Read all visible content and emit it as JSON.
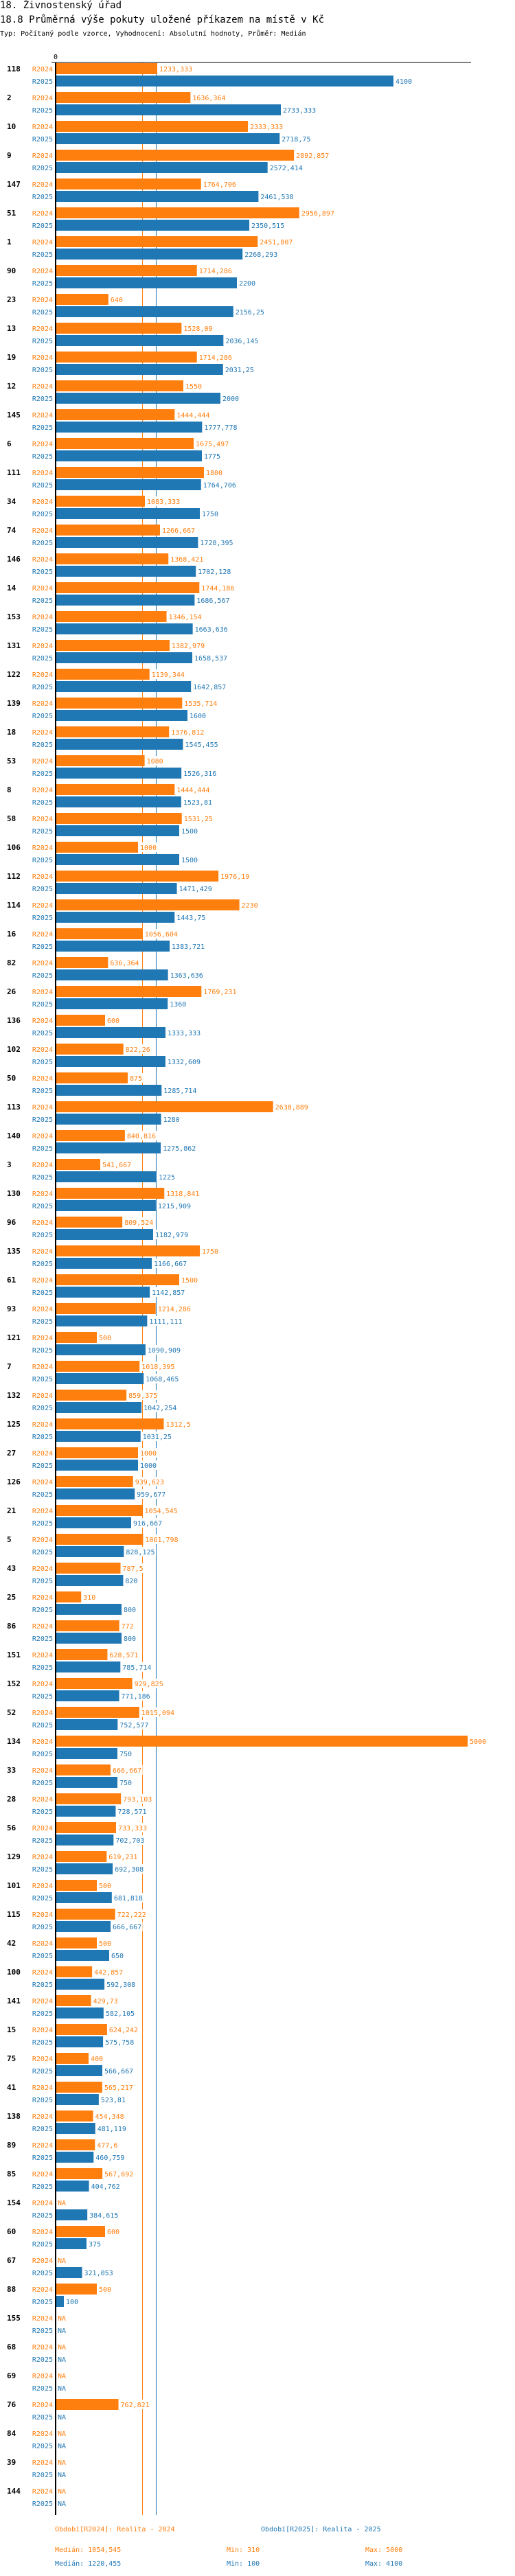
{
  "header": {
    "section": "18. Živnostenský úřad",
    "title": "18.8 Průměrná výše pokuty uložené příkazem na místě v Kč",
    "subtitle": "Typ: Počítaný podle vzorce, Vyhodnocení: Absolutní hodnoty, Průměr: Medián"
  },
  "colors": {
    "r2024": "#ff7f0e",
    "r2025": "#1f77b4",
    "axis": "#000000"
  },
  "chart_data": {
    "type": "bar",
    "orientation": "horizontal",
    "title": "18.8 Průměrná výše pokuty uložené příkazem na místě v Kč",
    "xlabel": "",
    "ylabel": "",
    "x_tick_labels": [
      "0"
    ],
    "xlim": [
      0,
      5000
    ],
    "grid": false,
    "legend_position": "bottom",
    "series_labels": [
      "R2024",
      "R2025"
    ],
    "categories": [
      "118",
      "2",
      "10",
      "9",
      "147",
      "51",
      "1",
      "90",
      "23",
      "13",
      "19",
      "12",
      "145",
      "6",
      "111",
      "34",
      "74",
      "146",
      "14",
      "153",
      "131",
      "122",
      "139",
      "18",
      "53",
      "8",
      "58",
      "106",
      "112",
      "114",
      "16",
      "82",
      "26",
      "136",
      "102",
      "50",
      "113",
      "140",
      "3",
      "130",
      "96",
      "135",
      "61",
      "93",
      "121",
      "7",
      "132",
      "125",
      "27",
      "126",
      "21",
      "5",
      "43",
      "25",
      "86",
      "151",
      "152",
      "52",
      "134",
      "33",
      "28",
      "56",
      "129",
      "101",
      "115",
      "42",
      "100",
      "141",
      "15",
      "75",
      "41",
      "138",
      "89",
      "85",
      "154",
      "60",
      "67",
      "88",
      "155",
      "68",
      "69",
      "76",
      "84",
      "39",
      "144"
    ],
    "series": [
      {
        "name": "R2024",
        "legend": "Období[R2024]: Realita - 2024",
        "values": [
          1233.333,
          1636.364,
          2333.333,
          2892.857,
          1764.706,
          2956.897,
          2451.807,
          1714.286,
          640,
          1528.09,
          1714.286,
          1550,
          1444.444,
          1675.497,
          1800,
          1083.333,
          1266.667,
          1368.421,
          1744.186,
          1346.154,
          1382.979,
          1139.344,
          1535.714,
          1376.812,
          1080,
          1444.444,
          1531.25,
          1000,
          1976.19,
          2230,
          1056.604,
          636.364,
          1769.231,
          600,
          822.26,
          875,
          2638.889,
          840.816,
          541.667,
          1318.841,
          809.524,
          1750,
          1500,
          1214.286,
          500,
          1018.395,
          859.375,
          1312.5,
          1000,
          939.623,
          1054.545,
          1061.798,
          787.5,
          310,
          772,
          628.571,
          929.825,
          1015.094,
          5000,
          666.667,
          793.103,
          733.333,
          619.231,
          500,
          722.222,
          500,
          442.857,
          429.73,
          624.242,
          400,
          565.217,
          454.348,
          477.6,
          567.692,
          null,
          600,
          null,
          500,
          null,
          null,
          null,
          762.821,
          null,
          null,
          null
        ],
        "labels": [
          "1233,333",
          "1636,364",
          "2333,333",
          "2892,857",
          "1764,706",
          "2956,897",
          "2451,807",
          "1714,286",
          "640",
          "1528,09",
          "1714,286",
          "1550",
          "1444,444",
          "1675,497",
          "1800",
          "1083,333",
          "1266,667",
          "1368,421",
          "1744,186",
          "1346,154",
          "1382,979",
          "1139,344",
          "1535,714",
          "1376,812",
          "1080",
          "1444,444",
          "1531,25",
          "1000",
          "1976,19",
          "2230",
          "1056,604",
          "636,364",
          "1769,231",
          "600",
          "822,26",
          "875",
          "2638,889",
          "840,816",
          "541,667",
          "1318,841",
          "809,524",
          "1750",
          "1500",
          "1214,286",
          "500",
          "1018,395",
          "859,375",
          "1312,5",
          "1000",
          "939,623",
          "1054,545",
          "1061,798",
          "787,5",
          "310",
          "772",
          "628,571",
          "929,825",
          "1015,094",
          "5000",
          "666,667",
          "793,103",
          "733,333",
          "619,231",
          "500",
          "722,222",
          "500",
          "442,857",
          "429,73",
          "624,242",
          "400",
          "565,217",
          "454,348",
          "477,6",
          "567,692",
          "NA",
          "600",
          "NA",
          "500",
          "NA",
          "NA",
          "NA",
          "762,821",
          "NA",
          "NA",
          "NA"
        ],
        "median": 1054.545,
        "median_label": "Medián: 1054,545",
        "min_label": "Min: 310",
        "max_label": "Max: 5000"
      },
      {
        "name": "R2025",
        "legend": "Období[R2025]: Realita - 2025",
        "values": [
          4100,
          2733.333,
          2718.75,
          2572.414,
          2461.538,
          2350.515,
          2268.293,
          2200,
          2156.25,
          2036.145,
          2031.25,
          2000,
          1777.778,
          1775,
          1764.706,
          1750,
          1728.395,
          1702.128,
          1686.567,
          1663.636,
          1658.537,
          1642.857,
          1600,
          1545.455,
          1526.316,
          1523.81,
          1500,
          1500,
          1471.429,
          1443.75,
          1383.721,
          1363.636,
          1360,
          1333.333,
          1332.609,
          1285.714,
          1280,
          1275.862,
          1225,
          1215.909,
          1182.979,
          1166.667,
          1142.857,
          1111.111,
          1090.909,
          1068.465,
          1042.254,
          1031.25,
          1000,
          959.677,
          916.667,
          828.125,
          820,
          800,
          800,
          785.714,
          771.186,
          752.577,
          750,
          750,
          728.571,
          702.703,
          692.308,
          681.818,
          666.667,
          650,
          592.308,
          582.105,
          575.758,
          566.667,
          523.81,
          481.119,
          460.759,
          404.762,
          384.615,
          375,
          321.053,
          100,
          null,
          null,
          null,
          null,
          null,
          null,
          null
        ],
        "labels": [
          "4100",
          "2733,333",
          "2718,75",
          "2572,414",
          "2461,538",
          "2350,515",
          "2268,293",
          "2200",
          "2156,25",
          "2036,145",
          "2031,25",
          "2000",
          "1777,778",
          "1775",
          "1764,706",
          "1750",
          "1728,395",
          "1702,128",
          "1686,567",
          "1663,636",
          "1658,537",
          "1642,857",
          "1600",
          "1545,455",
          "1526,316",
          "1523,81",
          "1500",
          "1500",
          "1471,429",
          "1443,75",
          "1383,721",
          "1363,636",
          "1360",
          "1333,333",
          "1332,609",
          "1285,714",
          "1280",
          "1275,862",
          "1225",
          "1215,909",
          "1182,979",
          "1166,667",
          "1142,857",
          "1111,111",
          "1090,909",
          "1068,465",
          "1042,254",
          "1031,25",
          "1000",
          "959,677",
          "916,667",
          "828,125",
          "820",
          "800",
          "800",
          "785,714",
          "771,186",
          "752,577",
          "750",
          "750",
          "728,571",
          "702,703",
          "692,308",
          "681,818",
          "666,667",
          "650",
          "592,308",
          "582,105",
          "575,758",
          "566,667",
          "523,81",
          "481,119",
          "460,759",
          "404,762",
          "384,615",
          "375",
          "321,053",
          "100",
          "NA",
          "NA",
          "NA",
          "NA",
          "NA",
          "NA",
          "NA"
        ],
        "median": 1220.455,
        "median_label": "Medián: 1220,455",
        "min_label": "Min: 100",
        "max_label": "Max: 4100"
      }
    ]
  }
}
